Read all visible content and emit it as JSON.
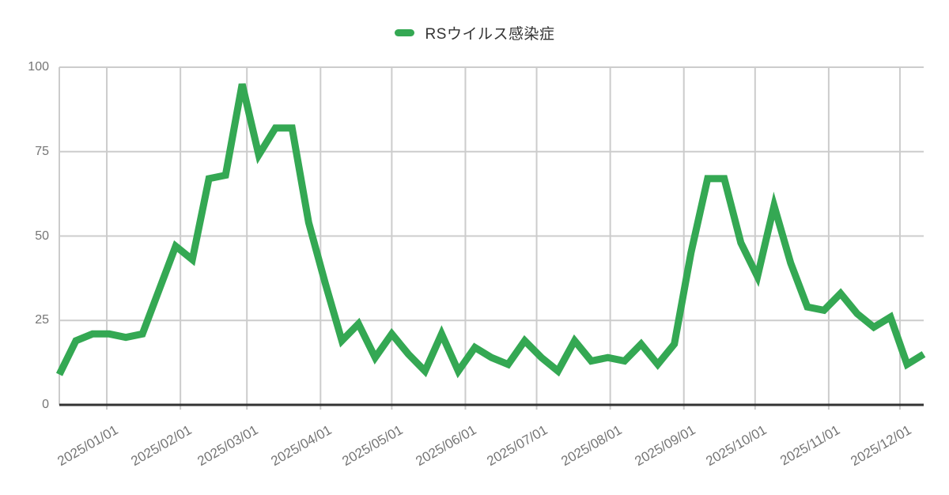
{
  "chart_data": {
    "type": "line",
    "title": "",
    "legend": {
      "label": "RSウイルス感染症",
      "position": "top"
    },
    "series": [
      {
        "name": "RSウイルス感染症",
        "color": "#34a853",
        "values": [
          9,
          19,
          21,
          21,
          20,
          21,
          34,
          47,
          43,
          67,
          68,
          95,
          74,
          82,
          82,
          54,
          36,
          19,
          24,
          14,
          21,
          15,
          10,
          21,
          10,
          17,
          14,
          12,
          19,
          14,
          10,
          19,
          13,
          14,
          13,
          18,
          12,
          18,
          45,
          67,
          67,
          48,
          38,
          59,
          42,
          29,
          28,
          33,
          27,
          23,
          26,
          12,
          15
        ]
      }
    ],
    "x_dates": [
      "2024/12/12",
      "2024/12/19",
      "2024/12/26",
      "2025/01/02",
      "2025/01/09",
      "2025/01/16",
      "2025/01/23",
      "2025/01/30",
      "2025/02/06",
      "2025/02/13",
      "2025/02/20",
      "2025/02/27",
      "2025/03/06",
      "2025/03/13",
      "2025/03/20",
      "2025/03/27",
      "2025/04/03",
      "2025/04/10",
      "2025/04/17",
      "2025/04/24",
      "2025/05/01",
      "2025/05/08",
      "2025/05/15",
      "2025/05/22",
      "2025/05/29",
      "2025/06/05",
      "2025/06/12",
      "2025/06/19",
      "2025/06/26",
      "2025/07/03",
      "2025/07/10",
      "2025/07/17",
      "2025/07/24",
      "2025/07/31",
      "2025/08/07",
      "2025/08/14",
      "2025/08/21",
      "2025/08/28",
      "2025/09/04",
      "2025/09/11",
      "2025/09/18",
      "2025/09/25",
      "2025/10/02",
      "2025/10/09",
      "2025/10/16",
      "2025/10/23",
      "2025/10/30",
      "2025/11/06",
      "2025/11/13",
      "2025/11/20",
      "2025/11/27",
      "2025/12/04",
      "2025/12/11"
    ],
    "x_tick_labels": [
      "2025/01/01",
      "2025/02/01",
      "2025/03/01",
      "2025/04/01",
      "2025/05/01",
      "2025/06/01",
      "2025/07/01",
      "2025/08/01",
      "2025/09/01",
      "2025/10/01",
      "2025/11/01",
      "2025/12/01"
    ],
    "y_ticks": [
      0,
      25,
      50,
      75,
      100
    ],
    "ylim": [
      0,
      100
    ],
    "grid": true,
    "x_label_rotation": -30,
    "colors": {
      "line": "#34a853",
      "grid": "#cccccc",
      "axis": "#333333",
      "tick_label": "#757575",
      "legend_text": "#333333",
      "background": "#ffffff"
    }
  }
}
